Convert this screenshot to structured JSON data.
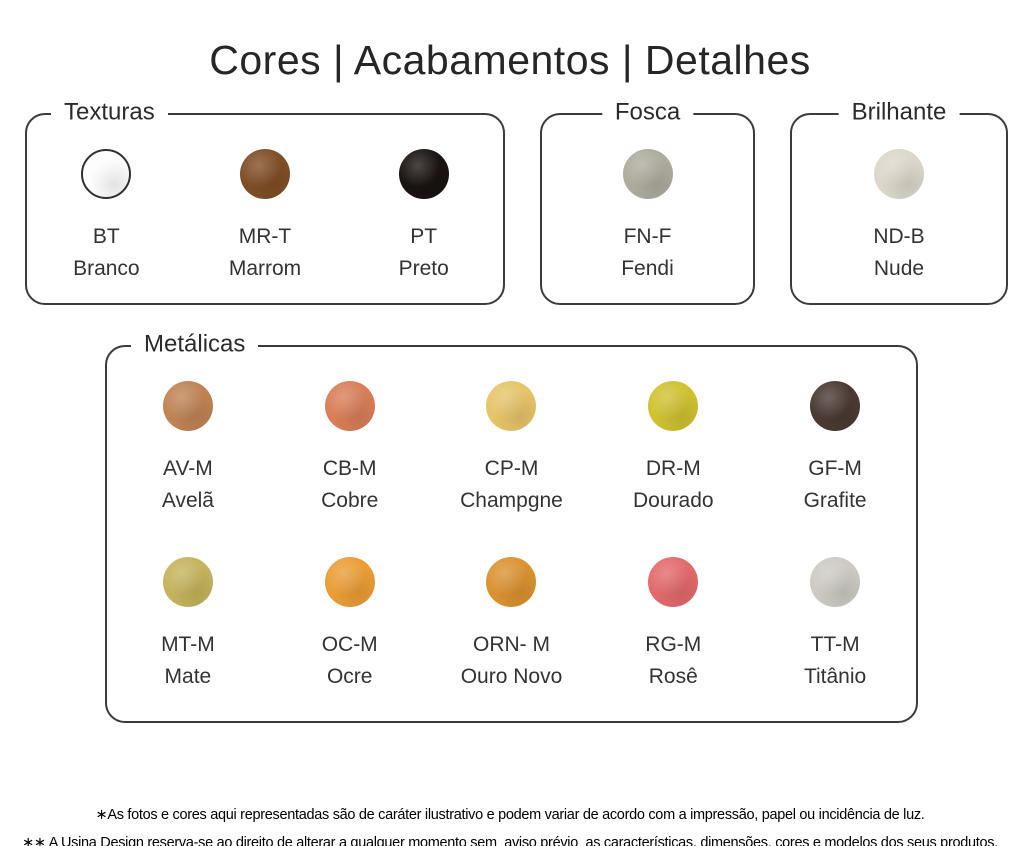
{
  "title": "Cores | Acabamentos | Detalhes",
  "groups": {
    "texturas": {
      "label": "Texturas",
      "swatches": [
        {
          "code": "BT",
          "name": "Branco",
          "color": "#fdfdfd",
          "border": "#2f2f2f"
        },
        {
          "code": "MR-T",
          "name": "Marrom",
          "color": "#7f4e26"
        },
        {
          "code": "PT",
          "name": "Preto",
          "color": "#1a1310"
        }
      ]
    },
    "fosca": {
      "label": "Fosca",
      "swatches": [
        {
          "code": "FN-F",
          "name": "Fendi",
          "color": "#aeac9e"
        }
      ]
    },
    "brilhante": {
      "label": "Brilhante",
      "swatches": [
        {
          "code": "ND-B",
          "name": "Nude",
          "color": "#dcd7ca"
        }
      ]
    },
    "metalicas": {
      "label": "Metálicas",
      "rows": [
        [
          {
            "code": "AV-M",
            "name": "Avelã",
            "color": "#c08355"
          },
          {
            "code": "CB-M",
            "name": "Cobre",
            "color": "#d97e58"
          },
          {
            "code": "CP-M",
            "name": "Champgne",
            "color": "#e6c468"
          },
          {
            "code": "DR-M",
            "name": "Dourado",
            "color": "#cfc231"
          },
          {
            "code": "GF-M",
            "name": "Grafite",
            "color": "#4a3a33"
          }
        ],
        [
          {
            "code": "MT-M",
            "name": "Mate",
            "color": "#c4b45c"
          },
          {
            "code": "OC-M",
            "name": "Ocre",
            "color": "#eb9d36"
          },
          {
            "code": "ORN- M",
            "name": "Ouro Novo",
            "color": "#db9231"
          },
          {
            "code": "RG-M",
            "name": "Rosê",
            "color": "#e26a6b"
          },
          {
            "code": "TT-M",
            "name": "Titânio",
            "color": "#cccac2"
          }
        ]
      ]
    }
  },
  "footer": {
    "note1": "∗As fotos e cores aqui representadas são de caráter ilustrativo e podem variar de acordo com a impressão, papel ou incidência de luz.",
    "note2": "∗∗ A Usina Design reserva-se ao direito de alterar a qualquer momento sem  aviso prévio  as características, dimensões, cores e modelos dos seus produtos."
  }
}
